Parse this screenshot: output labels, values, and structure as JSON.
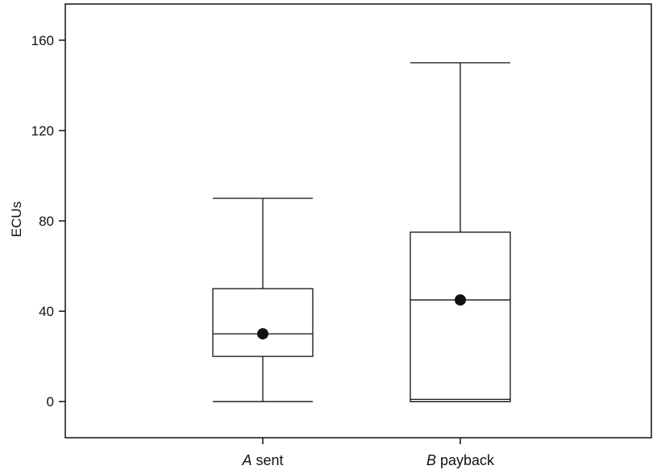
{
  "chart_data": {
    "type": "boxplot",
    "ylabel": "ECUs",
    "ylim": [
      -16,
      176
    ],
    "yticks": [
      0,
      40,
      80,
      120,
      160
    ],
    "categories": [
      {
        "prefix": "A",
        "label": "sent"
      },
      {
        "prefix": "B",
        "label": "payback"
      }
    ],
    "boxes": [
      {
        "min": 0,
        "q1": 20,
        "median": 30,
        "q3": 50,
        "max": 90,
        "mean": 30
      },
      {
        "min": 0,
        "q1": 0,
        "median": 45,
        "q3": 75,
        "max": 150,
        "mean": 45,
        "extra_line": 1
      }
    ],
    "grid": false
  }
}
